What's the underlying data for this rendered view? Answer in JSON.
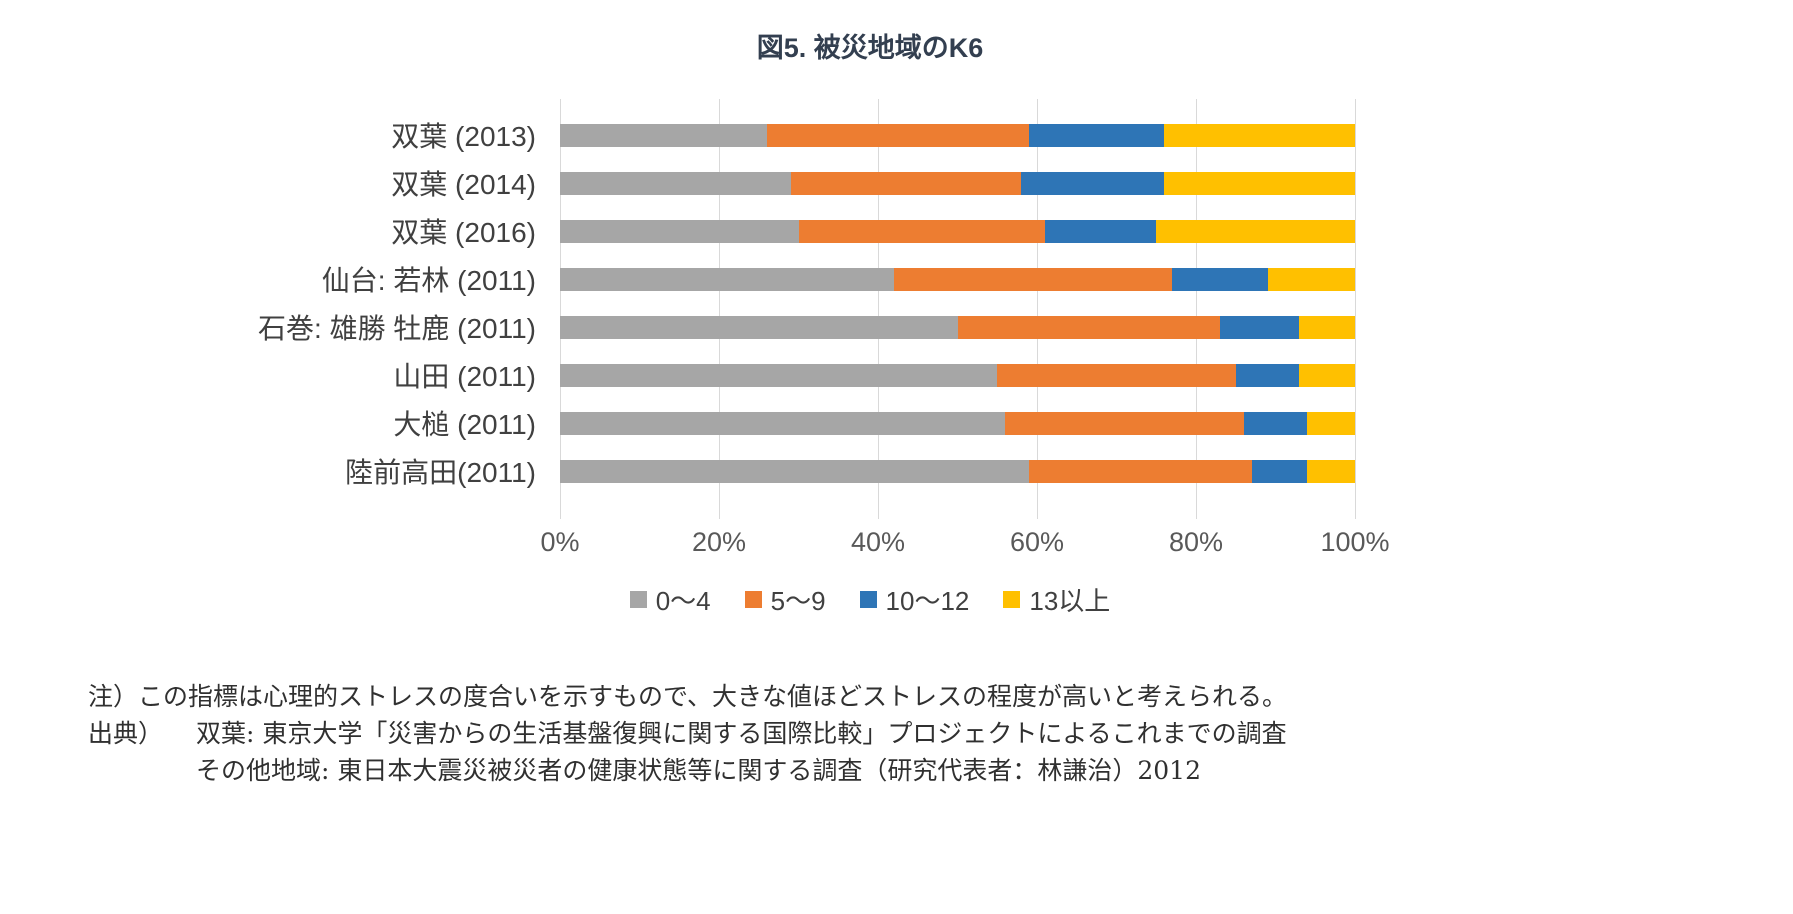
{
  "chart_data": {
    "type": "bar",
    "stacked": true,
    "orientation": "horizontal",
    "percent_stacked": true,
    "title": "図5. 被災地域のK6",
    "categories": [
      "双葉 (2013)",
      "双葉 (2014)",
      "双葉 (2016)",
      "仙台: 若林 (2011)",
      "石巻: 雄勝 牡鹿 (2011)",
      "山田 (2011)",
      "大槌 (2011)",
      "陸前高田(2011)"
    ],
    "series": [
      {
        "name": "0〜4",
        "color": "#A6A6A6",
        "values": [
          26,
          29,
          30,
          42,
          50,
          55,
          56,
          59
        ]
      },
      {
        "name": "5〜9",
        "color": "#ED7D31",
        "values": [
          33,
          29,
          31,
          35,
          33,
          30,
          30,
          28
        ]
      },
      {
        "name": "10〜12",
        "color": "#2E75B6",
        "values": [
          17,
          18,
          14,
          12,
          10,
          8,
          8,
          7
        ]
      },
      {
        "name": "13以上",
        "color": "#FFC000",
        "values": [
          24,
          24,
          25,
          11,
          7,
          7,
          6,
          6
        ]
      }
    ],
    "x_ticks": [
      "0%",
      "20%",
      "40%",
      "60%",
      "80%",
      "100%"
    ],
    "xlim": [
      0,
      100
    ],
    "unit": "%",
    "grid": "vertical",
    "legend_position": "bottom"
  },
  "notes": {
    "note1": "注）この指標は心理的ストレスの度合いを示すもので、大きな値ほどストレスの程度が高いと考えられる。",
    "source_label": "出典）",
    "source_line1": "双葉: 東京大学「災害からの生活基盤復興に関する国際比較」プロジェクトによるこれまでの調査",
    "source_line2": "その他地域: 東日本大震災被災者の健康状態等に関する調査（研究代表者：林謙治）2012"
  },
  "colors": {
    "gridline": "#D9D9D9",
    "axis_text": "#595959",
    "label_text": "#404040",
    "title_text": "#333F50"
  }
}
